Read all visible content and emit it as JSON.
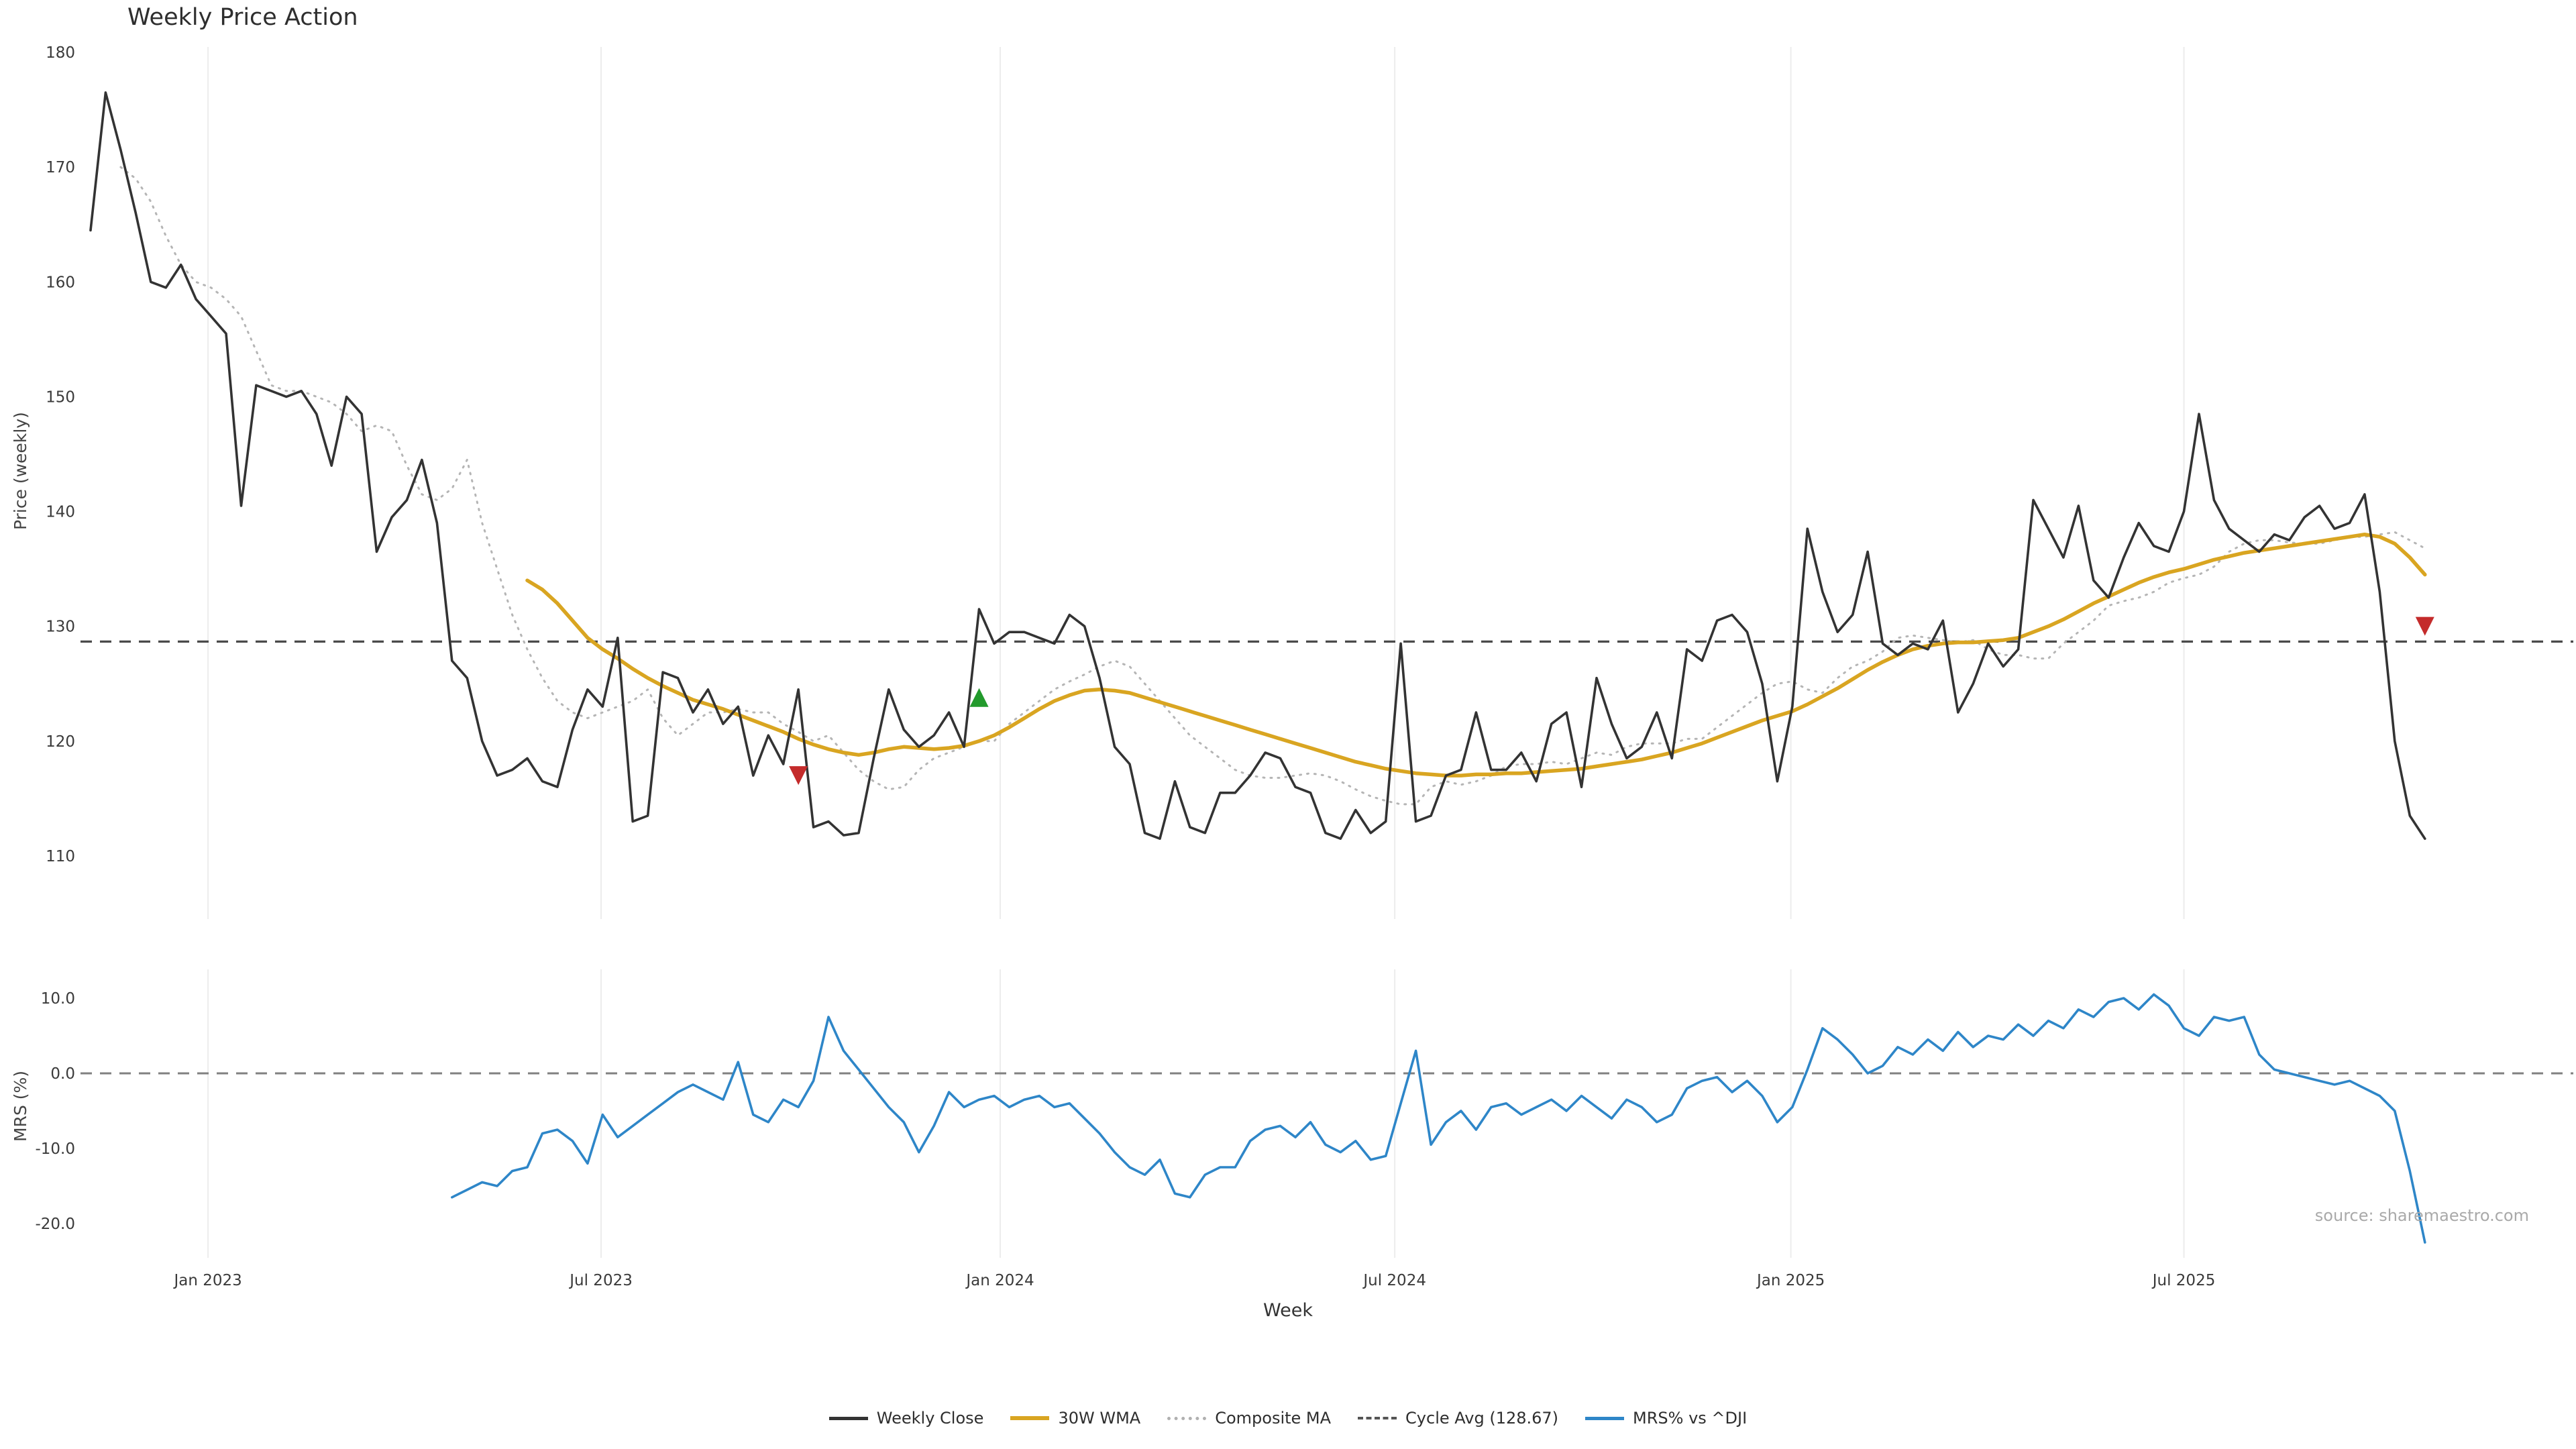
{
  "title": "Weekly Price Action",
  "source": "source: sharemaestro.com",
  "axes": {
    "price_ylabel": "Price (weekly)",
    "mrs_ylabel": "MRS (%)",
    "xlabel": "Week",
    "price_yticks": [
      110,
      120,
      130,
      140,
      150,
      160,
      170,
      180
    ],
    "mrs_yticks": [
      "10.0",
      "0.0",
      "-10.0",
      "-20.0"
    ],
    "mrs_ytick_values": [
      10,
      0,
      -10,
      -20
    ],
    "x_ticks": [
      {
        "label": "Jan 2023",
        "week": 7.8
      },
      {
        "label": "Jul 2023",
        "week": 33.9
      },
      {
        "label": "Jan 2024",
        "week": 60.4
      },
      {
        "label": "Jul 2024",
        "week": 86.6
      },
      {
        "label": "Jan 2025",
        "week": 112.9
      },
      {
        "label": "Jul 2025",
        "week": 139.0
      }
    ]
  },
  "legend": {
    "items": [
      {
        "label": "Weekly Close"
      },
      {
        "label": "30W WMA"
      },
      {
        "label": "Composite MA"
      },
      {
        "label": "Cycle Avg (128.67)"
      },
      {
        "label": "MRS% vs ^DJI"
      }
    ]
  },
  "chart_data": [
    {
      "type": "line",
      "title": "Weekly Price Action",
      "xlabel": "Week",
      "ylabel": "Price (weekly)",
      "ylim": [
        107,
        181
      ],
      "x_unit": "week_index",
      "x_tick_labels": [
        "Jan 2023",
        "Jul 2023",
        "Jan 2024",
        "Jul 2024",
        "Jan 2025",
        "Jul 2025"
      ],
      "grid": "vertical-light",
      "legend_position": "bottom-center",
      "series": [
        {
          "name": "Weekly Close",
          "color": "#333333",
          "style": "solid",
          "start_week": 0,
          "values": [
            164.5,
            176.5,
            171.5,
            166,
            160,
            159.5,
            161.5,
            158.5,
            157,
            155.5,
            140.5,
            151,
            150.5,
            150,
            150.5,
            148.5,
            144,
            150,
            148.5,
            136.5,
            139.5,
            141,
            144.5,
            139,
            127,
            125.5,
            120,
            117,
            117.5,
            118.5,
            116.5,
            116,
            121,
            124.5,
            123,
            129,
            113,
            113.5,
            126,
            125.5,
            122.5,
            124.5,
            121.5,
            123,
            117,
            120.5,
            118,
            124.5,
            112.5,
            113,
            111.8,
            112,
            118.5,
            124.5,
            121,
            119.5,
            120.5,
            122.5,
            119.5,
            131.5,
            128.5,
            129.5,
            129.5,
            129,
            128.5,
            131,
            130,
            125.5,
            119.5,
            118,
            112,
            111.5,
            116.5,
            112.5,
            112,
            115.5,
            115.5,
            117,
            119,
            118.5,
            116,
            115.5,
            112,
            111.5,
            114,
            112,
            113,
            128.5,
            113,
            113.5,
            117,
            117.5,
            122.5,
            117.5,
            117.5,
            119,
            116.5,
            121.5,
            122.5,
            116,
            125.5,
            121.5,
            118.5,
            119.5,
            122.5,
            118.5,
            128,
            127,
            130.5,
            131,
            129.5,
            125,
            116.5,
            123,
            138.5,
            133,
            129.5,
            131,
            136.5,
            128.5,
            127.5,
            128.5,
            128,
            130.5,
            122.5,
            125,
            128.5,
            126.5,
            128,
            141,
            138.5,
            136,
            140.5,
            134,
            132.5,
            136,
            139,
            137,
            136.5,
            140,
            148.5,
            141,
            138.5,
            137.5,
            136.5,
            138,
            137.5,
            139.5,
            140.5,
            138.5,
            139,
            141.5,
            133,
            120,
            113.5,
            111.5
          ]
        },
        {
          "name": "30W WMA",
          "color": "#d9a521",
          "style": "solid",
          "start_week": 29,
          "values": [
            134,
            133.2,
            132,
            130.5,
            129,
            128,
            127.2,
            126.3,
            125.5,
            124.8,
            124.2,
            123.6,
            123.2,
            122.8,
            122.3,
            121.8,
            121.3,
            120.8,
            120.2,
            119.7,
            119.3,
            119,
            118.8,
            119,
            119.3,
            119.5,
            119.4,
            119.3,
            119.4,
            119.6,
            120,
            120.5,
            121.2,
            122,
            122.8,
            123.5,
            124,
            124.4,
            124.5,
            124.4,
            124.2,
            123.8,
            123.4,
            123,
            122.6,
            122.2,
            121.8,
            121.4,
            121,
            120.6,
            120.2,
            119.8,
            119.4,
            119,
            118.6,
            118.2,
            117.9,
            117.6,
            117.4,
            117.2,
            117.1,
            117,
            117,
            117.1,
            117.1,
            117.2,
            117.2,
            117.3,
            117.4,
            117.5,
            117.6,
            117.8,
            118,
            118.2,
            118.4,
            118.7,
            119,
            119.4,
            119.8,
            120.3,
            120.8,
            121.3,
            121.8,
            122.2,
            122.6,
            123.2,
            123.9,
            124.6,
            125.4,
            126.2,
            126.9,
            127.5,
            128,
            128.3,
            128.5,
            128.6,
            128.6,
            128.7,
            128.8,
            129,
            129.5,
            130,
            130.6,
            131.3,
            132,
            132.6,
            133.2,
            133.8,
            134.3,
            134.7,
            135,
            135.4,
            135.8,
            136.1,
            136.4,
            136.6,
            136.8,
            137,
            137.2,
            137.4,
            137.6,
            137.8,
            138,
            137.8,
            137.2,
            136,
            134.5
          ]
        },
        {
          "name": "Composite MA",
          "color": "#b5b5b5",
          "style": "dotted",
          "start_week": 2,
          "values": [
            170,
            169,
            167,
            164,
            161.5,
            160,
            159.5,
            158.5,
            157,
            154,
            151,
            150.5,
            150.5,
            150,
            149.5,
            148.5,
            147,
            147.5,
            147,
            144,
            141.5,
            141,
            142,
            144.5,
            139,
            135,
            131,
            128,
            125.5,
            123.5,
            122.5,
            122,
            122.5,
            123,
            123.5,
            124.5,
            122,
            120.5,
            121.5,
            122.5,
            122.5,
            122.8,
            122.5,
            122.5,
            121.5,
            120.8,
            120,
            120.5,
            119,
            117.5,
            116.5,
            115.8,
            116,
            117.5,
            118.5,
            119,
            119.5,
            120,
            120,
            121.5,
            122.5,
            123.5,
            124.5,
            125.2,
            125.8,
            126.5,
            127,
            126.5,
            125,
            123.5,
            122,
            120.5,
            119.5,
            118.5,
            117.5,
            117,
            116.8,
            116.8,
            117,
            117.2,
            117,
            116.5,
            115.8,
            115.2,
            114.8,
            114.5,
            114.5,
            116,
            116.5,
            116.2,
            116.5,
            117,
            117.8,
            118,
            118,
            118.2,
            118,
            118.5,
            119,
            118.8,
            119.5,
            119.8,
            119.8,
            119.8,
            120.2,
            120.2,
            121.2,
            122.2,
            123.2,
            124.2,
            125,
            125.2,
            124.5,
            124.2,
            125.5,
            126.5,
            127,
            127.8,
            129,
            129.2,
            129,
            128.8,
            128.6,
            128.8,
            128,
            127.5,
            127.5,
            127.2,
            127.2,
            128.5,
            129.5,
            130.5,
            131.8,
            132.2,
            132.5,
            133,
            133.8,
            134.2,
            134.5,
            135.2,
            136.5,
            137.2,
            137.5,
            137.5,
            137.3,
            137.2,
            137.2,
            137.5,
            137.8,
            137.8,
            138,
            138.2,
            137.5,
            136.8
          ]
        },
        {
          "name": "Cycle Avg (128.67)",
          "color": "#4a4a4a",
          "style": "dashed",
          "value": 128.67
        }
      ],
      "markers": [
        {
          "name": "sell-signal",
          "direction": "down",
          "week": 47,
          "value": 117,
          "color": "#c42b2b"
        },
        {
          "name": "buy-signal",
          "direction": "up",
          "week": 59,
          "value": 123.8,
          "color": "#229a2c"
        },
        {
          "name": "sell-signal",
          "direction": "down",
          "week": 155,
          "value": 130,
          "color": "#c42b2b"
        }
      ]
    },
    {
      "type": "line",
      "ylabel": "MRS (%)",
      "ylim": [
        -25,
        13
      ],
      "x_unit": "week_index",
      "zero_line": {
        "value": 0,
        "style": "dashed",
        "color": "#808080"
      },
      "series": [
        {
          "name": "MRS% vs ^DJI",
          "color": "#2e86c8",
          "style": "solid",
          "start_week": 24,
          "values": [
            -16.5,
            -15.5,
            -14.5,
            -15,
            -13,
            -12.5,
            -8,
            -7.5,
            -9,
            -12,
            -5.5,
            -8.5,
            -7,
            -5.5,
            -4,
            -2.5,
            -1.5,
            -2.5,
            -3.5,
            1.5,
            -5.5,
            -6.5,
            -3.5,
            -4.5,
            -1,
            7.5,
            3,
            0.5,
            -2,
            -4.5,
            -6.5,
            -10.5,
            -7,
            -2.5,
            -4.5,
            -3.5,
            -3,
            -4.5,
            -3.5,
            -3,
            -4.5,
            -4,
            -6,
            -8,
            -10.5,
            -12.5,
            -13.5,
            -11.5,
            -16,
            -16.5,
            -13.5,
            -12.5,
            -12.5,
            -9,
            -7.5,
            -7,
            -8.5,
            -6.5,
            -9.5,
            -10.5,
            -9,
            -11.5,
            -11,
            -4,
            3,
            -9.5,
            -6.5,
            -5,
            -7.5,
            -4.5,
            -4,
            -5.5,
            -4.5,
            -3.5,
            -5,
            -3,
            -4.5,
            -6,
            -3.5,
            -4.5,
            -6.5,
            -5.5,
            -2,
            -1,
            -0.5,
            -2.5,
            -1,
            -3,
            -6.5,
            -4.5,
            0.5,
            6,
            4.5,
            2.5,
            0,
            1,
            3.5,
            2.5,
            4.5,
            3,
            5.5,
            3.5,
            5,
            4.5,
            6.5,
            5,
            7,
            6,
            8.5,
            7.5,
            9.5,
            10,
            8.5,
            10.5,
            9,
            6,
            5,
            7.5,
            7,
            7.5,
            2.5,
            0.5,
            0,
            -0.5,
            -1,
            -1.5,
            -1,
            -2,
            -3,
            -5,
            -13,
            -22.5
          ]
        }
      ]
    }
  ]
}
